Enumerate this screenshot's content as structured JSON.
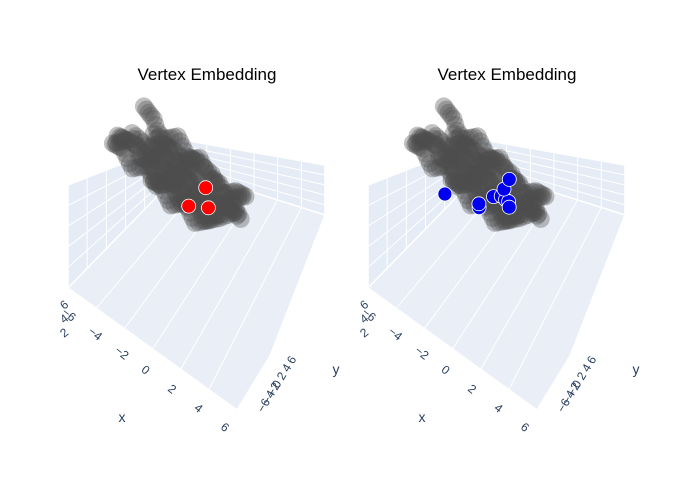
{
  "chart_data": [
    {
      "type": "scatter3d",
      "title": "Vertex Embedding",
      "xlabel": "x",
      "ylabel": "y",
      "x_ticks": [
        "−6",
        "−4",
        "−2",
        "0",
        "2",
        "4",
        "6"
      ],
      "y_ticks": [
        "−6",
        "−4",
        "−2",
        "0",
        "2",
        "4",
        "6"
      ],
      "z_ticks": [
        "2",
        "4",
        "6"
      ],
      "background_color": "#e5ecf6",
      "series": [
        {
          "role": "embedding",
          "color": "#4d4d4d",
          "points": [
            [
              -4,
              6,
              3
            ],
            [
              -3,
              5,
              3
            ],
            [
              -2,
              3,
              2
            ],
            [
              -1,
              2,
              3
            ],
            [
              0,
              3,
              2
            ],
            [
              1,
              4,
              3
            ],
            [
              2,
              3,
              2
            ],
            [
              3,
              2,
              3
            ],
            [
              4,
              1,
              2
            ],
            [
              3,
              0,
              1
            ],
            [
              2,
              -1,
              2
            ],
            [
              1,
              -2,
              1
            ],
            [
              0,
              -1,
              2
            ],
            [
              -1,
              0,
              1
            ],
            [
              -2,
              1,
              2
            ],
            [
              -3,
              2,
              1
            ],
            [
              -4,
              1,
              2
            ],
            [
              -3,
              -1,
              1
            ],
            [
              -2,
              -2,
              2
            ],
            [
              -1,
              -3,
              1
            ],
            [
              0,
              -2,
              2
            ],
            [
              1,
              -1,
              3
            ],
            [
              2,
              -2,
              2
            ],
            [
              3,
              -3,
              1
            ],
            [
              4,
              -2,
              2
            ],
            [
              3,
              -1,
              3
            ],
            [
              2,
              0,
              2
            ],
            [
              1,
              1,
              3
            ],
            [
              0,
              2,
              2
            ],
            [
              -1,
              3,
              1
            ],
            [
              -2,
              4,
              2
            ],
            [
              -1,
              5,
              3
            ],
            [
              0,
              4,
              2
            ],
            [
              1,
              3,
              3
            ],
            [
              2,
              4,
              2
            ],
            [
              3,
              3,
              1
            ],
            [
              4,
              4,
              2
            ],
            [
              5,
              3,
              3
            ],
            [
              4,
              2,
              2
            ],
            [
              5,
              1,
              1
            ],
            [
              4,
              0,
              2
            ],
            [
              5,
              -1,
              3
            ],
            [
              4,
              -3,
              2
            ],
            [
              3,
              -4,
              1
            ],
            [
              2,
              -3,
              2
            ],
            [
              1,
              -4,
              1
            ],
            [
              0,
              -3,
              2
            ],
            [
              -1,
              -4,
              1
            ],
            [
              -2,
              -3,
              2
            ],
            [
              -3,
              -4,
              1
            ],
            [
              -4,
              -3,
              2
            ],
            [
              -5,
              -2,
              1
            ],
            [
              -4,
              -1,
              2
            ],
            [
              -5,
              0,
              1
            ],
            [
              -4,
              2,
              0
            ],
            [
              -3,
              3,
              -1
            ],
            [
              -2,
              2,
              0
            ],
            [
              -1,
              1,
              -1
            ],
            [
              0,
              0,
              0
            ],
            [
              1,
              -1,
              -1
            ],
            [
              2,
              0,
              0
            ],
            [
              3,
              1,
              -1
            ],
            [
              2,
              2,
              0
            ],
            [
              1,
              3,
              -1
            ],
            [
              0,
              4,
              0
            ],
            [
              -1,
              3,
              -1
            ],
            [
              -2,
              4,
              0
            ],
            [
              -3,
              5,
              1
            ],
            [
              -2,
              -1,
              -1
            ],
            [
              -1,
              -2,
              0
            ],
            [
              0,
              -3,
              -1
            ],
            [
              1,
              -2,
              0
            ],
            [
              2,
              -3,
              -1
            ],
            [
              3,
              -2,
              0
            ]
          ]
        },
        {
          "role": "highlight",
          "color": "#ff0000",
          "points": [
            [
              1.2,
              -1.6,
              -0.4
            ],
            [
              2.6,
              -0.4,
              0.4
            ],
            [
              2.1,
              1.0,
              1.8
            ]
          ]
        }
      ]
    },
    {
      "type": "scatter3d",
      "title": "Vertex Embedding",
      "xlabel": "x",
      "ylabel": "y",
      "x_ticks": [
        "−6",
        "−4",
        "−2",
        "0",
        "2",
        "4",
        "6"
      ],
      "y_ticks": [
        "−6",
        "−4",
        "−2",
        "0",
        "2",
        "4",
        "6"
      ],
      "z_ticks": [
        "2",
        "4",
        "6"
      ],
      "background_color": "#e5ecf6",
      "series": [
        {
          "role": "embedding",
          "color": "#4d4d4d",
          "points": [
            [
              -4,
              6,
              3
            ],
            [
              -3,
              5,
              3
            ],
            [
              -2,
              3,
              2
            ],
            [
              -1,
              2,
              3
            ],
            [
              0,
              3,
              2
            ],
            [
              1,
              4,
              3
            ],
            [
              2,
              3,
              2
            ],
            [
              3,
              2,
              3
            ],
            [
              4,
              1,
              2
            ],
            [
              3,
              0,
              1
            ],
            [
              2,
              -1,
              2
            ],
            [
              1,
              -2,
              1
            ],
            [
              0,
              -1,
              2
            ],
            [
              -1,
              0,
              1
            ],
            [
              -2,
              1,
              2
            ],
            [
              -3,
              2,
              1
            ],
            [
              -4,
              1,
              2
            ],
            [
              -3,
              -1,
              1
            ],
            [
              -2,
              -2,
              2
            ],
            [
              -1,
              -3,
              1
            ],
            [
              0,
              -2,
              2
            ],
            [
              1,
              -1,
              3
            ],
            [
              2,
              -2,
              2
            ],
            [
              3,
              -3,
              1
            ],
            [
              4,
              -2,
              2
            ],
            [
              3,
              -1,
              3
            ],
            [
              2,
              0,
              2
            ],
            [
              1,
              1,
              3
            ],
            [
              0,
              2,
              2
            ],
            [
              -1,
              3,
              1
            ],
            [
              -2,
              4,
              2
            ],
            [
              -1,
              5,
              3
            ],
            [
              0,
              4,
              2
            ],
            [
              1,
              3,
              3
            ],
            [
              2,
              4,
              2
            ],
            [
              3,
              3,
              1
            ],
            [
              4,
              4,
              2
            ],
            [
              5,
              3,
              3
            ],
            [
              4,
              2,
              2
            ],
            [
              5,
              1,
              1
            ],
            [
              4,
              0,
              2
            ],
            [
              5,
              -1,
              3
            ],
            [
              4,
              -3,
              2
            ],
            [
              3,
              -4,
              1
            ],
            [
              2,
              -3,
              2
            ],
            [
              1,
              -4,
              1
            ],
            [
              0,
              -3,
              2
            ],
            [
              -1,
              -4,
              1
            ],
            [
              -2,
              -3,
              2
            ],
            [
              -3,
              -4,
              1
            ],
            [
              -4,
              -3,
              2
            ],
            [
              -5,
              -2,
              1
            ],
            [
              -4,
              -1,
              2
            ],
            [
              -5,
              0,
              1
            ],
            [
              -4,
              2,
              0
            ],
            [
              -3,
              3,
              -1
            ],
            [
              -2,
              2,
              0
            ],
            [
              -1,
              1,
              -1
            ],
            [
              0,
              0,
              0
            ],
            [
              1,
              -1,
              -1
            ],
            [
              2,
              0,
              0
            ],
            [
              3,
              1,
              -1
            ],
            [
              2,
              2,
              0
            ],
            [
              1,
              3,
              -1
            ],
            [
              0,
              4,
              0
            ],
            [
              -1,
              3,
              -1
            ],
            [
              -2,
              4,
              0
            ],
            [
              -3,
              5,
              1
            ],
            [
              -2,
              -1,
              -1
            ],
            [
              -1,
              -2,
              0
            ],
            [
              0,
              -3,
              -1
            ],
            [
              1,
              -2,
              0
            ],
            [
              2,
              -3,
              -1
            ],
            [
              3,
              -2,
              0
            ]
          ]
        },
        {
          "role": "highlight",
          "color": "#0000ee",
          "points": [
            [
              -2.0,
              -3.8,
              -1.4
            ],
            [
              0.6,
              -2.6,
              -0.8
            ],
            [
              0.5,
              -2.2,
              -0.6
            ],
            [
              1.4,
              -0.6,
              0.6
            ],
            [
              1.9,
              0.1,
              0.9
            ],
            [
              2.3,
              -0.1,
              1.0
            ],
            [
              2.5,
              0.2,
              0.8
            ],
            [
              2.0,
              0.8,
              1.6
            ],
            [
              2.7,
              -0.6,
              0.7
            ],
            [
              2.3,
              1.5,
              2.9
            ]
          ]
        }
      ]
    }
  ]
}
